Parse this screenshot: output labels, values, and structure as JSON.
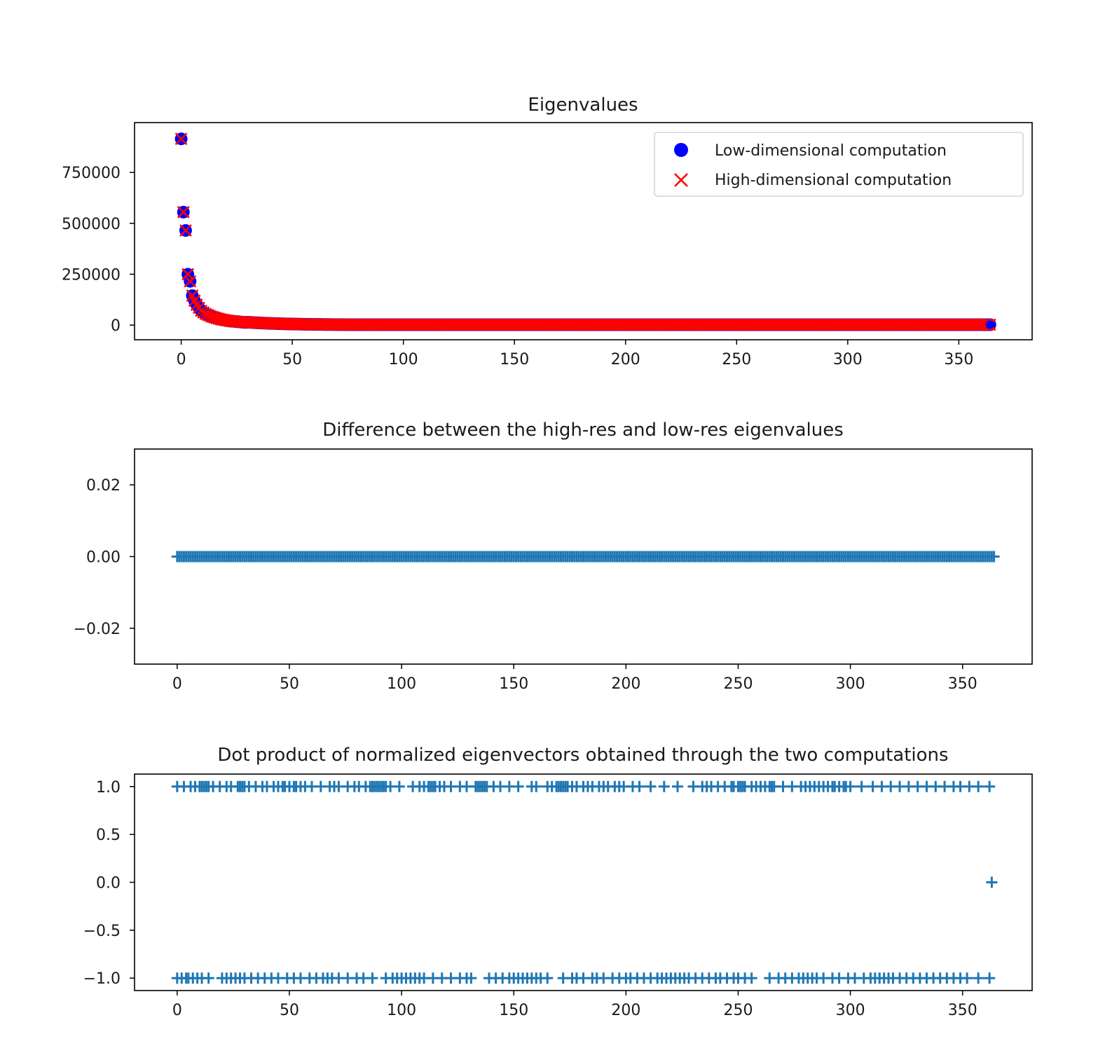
{
  "colors": {
    "low": "#0000ff",
    "high": "#ff0000",
    "series": "#1f77b4",
    "axes": "#000000"
  },
  "chart_data": [
    {
      "type": "scatter",
      "title": "Eigenvalues",
      "xlabel": "",
      "ylabel": "",
      "xlim": [
        -21,
        383
      ],
      "ylim": [
        -72000,
        995000
      ],
      "xticks": [
        0,
        50,
        100,
        150,
        200,
        250,
        300,
        350
      ],
      "yticks": [
        0,
        250000,
        500000,
        750000
      ],
      "legend": {
        "placement": "top-right"
      },
      "grid": false,
      "n_points": 365,
      "series": [
        {
          "name": "Low-dimensional computation",
          "marker": "circle",
          "color": "#0000ff",
          "leading_values": [
            915000,
            555000,
            465000,
            250000,
            215000,
            145000,
            120000,
            100000,
            85000,
            70000,
            62000,
            55000,
            50000,
            45000,
            41000,
            37000,
            34000,
            31000,
            28000,
            26000,
            24000,
            22000,
            20000,
            19000,
            18000,
            17000,
            16000,
            15000,
            14000,
            13000
          ],
          "tail_value": 2000
        },
        {
          "name": "High-dimensional computation",
          "marker": "x",
          "color": "#ff0000",
          "leading_values": [
            915000,
            555000,
            465000,
            250000,
            215000,
            145000,
            120000,
            100000,
            85000,
            70000,
            62000,
            55000,
            50000,
            45000,
            41000,
            37000,
            34000,
            31000,
            28000,
            26000,
            24000,
            22000,
            20000,
            19000,
            18000,
            17000,
            16000,
            15000,
            14000,
            13000
          ],
          "tail_value": 2000
        }
      ]
    },
    {
      "type": "scatter",
      "title": "Difference between the high-res and low-res eigenvalues",
      "xlabel": "",
      "ylabel": "",
      "xlim": [
        -19,
        381
      ],
      "ylim": [
        -0.03,
        0.03
      ],
      "xticks": [
        0,
        50,
        100,
        150,
        200,
        250,
        300,
        350
      ],
      "yticks": [
        -0.02,
        0.0,
        0.02
      ],
      "ytick_labels": [
        "−0.02",
        "0.00",
        "0.02"
      ],
      "grid": false,
      "series": [
        {
          "marker": "+",
          "color": "#1f77b4",
          "x_range": [
            0,
            364
          ],
          "value": 0.0
        }
      ]
    },
    {
      "type": "scatter",
      "title": "Dot product of normalized eigenvectors obtained through the two computations",
      "xlabel": "",
      "ylabel": "",
      "xlim": [
        -19,
        381
      ],
      "ylim": [
        -1.13,
        1.13
      ],
      "xticks": [
        0,
        50,
        100,
        150,
        200,
        250,
        300,
        350
      ],
      "yticks": [
        -1.0,
        -0.5,
        0.0,
        0.5,
        1.0
      ],
      "ytick_labels": [
        "−1.0",
        "−0.5",
        "0.0",
        "0.5",
        "1.0"
      ],
      "grid": false,
      "series": [
        {
          "marker": "+",
          "color": "#1f77b4",
          "points_at_plus_one": [
            0,
            3,
            6,
            8,
            10,
            11,
            12,
            13,
            14,
            16,
            19,
            22,
            24,
            27,
            28,
            29,
            30,
            32,
            35,
            38,
            40,
            43,
            45,
            47,
            48,
            50,
            52,
            53,
            55,
            57,
            60,
            64,
            68,
            70,
            72,
            76,
            79,
            81,
            84,
            86,
            87,
            88,
            89,
            90,
            91,
            92,
            93,
            95,
            99,
            105,
            108,
            110,
            112,
            113,
            114,
            115,
            117,
            119,
            122,
            126,
            129,
            133,
            134,
            135,
            136,
            137,
            138,
            141,
            144,
            148,
            152,
            158,
            160,
            165,
            167,
            169,
            170,
            171,
            172,
            173,
            174,
            176,
            178,
            181,
            183,
            185,
            188,
            190,
            192,
            195,
            197,
            199,
            203,
            206,
            211,
            217,
            223,
            230,
            234,
            236,
            238,
            241,
            244,
            247,
            248,
            250,
            251,
            252,
            253,
            256,
            258,
            260,
            262,
            264,
            265,
            266,
            270,
            274,
            278,
            280,
            282,
            284,
            286,
            288,
            290,
            292,
            293,
            295,
            297,
            298,
            300,
            305,
            310,
            314,
            318,
            322,
            326,
            330,
            334,
            338,
            342,
            346,
            349,
            353,
            357,
            362
          ],
          "points_at_zero": [
            363
          ],
          "points_at_minus_one": [
            0,
            2,
            4,
            5,
            7,
            9,
            11,
            14,
            20,
            22,
            24,
            26,
            28,
            30,
            33,
            36,
            39,
            42,
            45,
            49,
            52,
            55,
            59,
            62,
            65,
            67,
            69,
            72,
            76,
            80,
            83,
            87,
            93,
            96,
            98,
            100,
            102,
            104,
            106,
            108,
            110,
            114,
            118,
            122,
            126,
            129,
            131,
            139,
            142,
            145,
            148,
            150,
            152,
            154,
            156,
            158,
            160,
            162,
            165,
            172,
            176,
            178,
            181,
            185,
            187,
            190,
            194,
            197,
            200,
            202,
            205,
            208,
            211,
            214,
            216,
            218,
            220,
            222,
            224,
            226,
            228,
            231,
            234,
            237,
            240,
            242,
            245,
            248,
            250,
            253,
            256,
            264,
            268,
            271,
            274,
            277,
            279,
            281,
            283,
            285,
            288,
            292,
            295,
            299,
            302,
            306,
            309,
            311,
            313,
            315,
            317,
            319,
            322,
            325,
            328,
            331,
            334,
            337,
            340,
            343,
            346,
            349,
            352,
            357,
            362
          ]
        }
      ]
    }
  ],
  "legend": [
    {
      "label": "Low-dimensional computation",
      "marker": "circle",
      "color": "#0000ff"
    },
    {
      "label": "High-dimensional computation",
      "marker": "x",
      "color": "#ff0000"
    }
  ]
}
